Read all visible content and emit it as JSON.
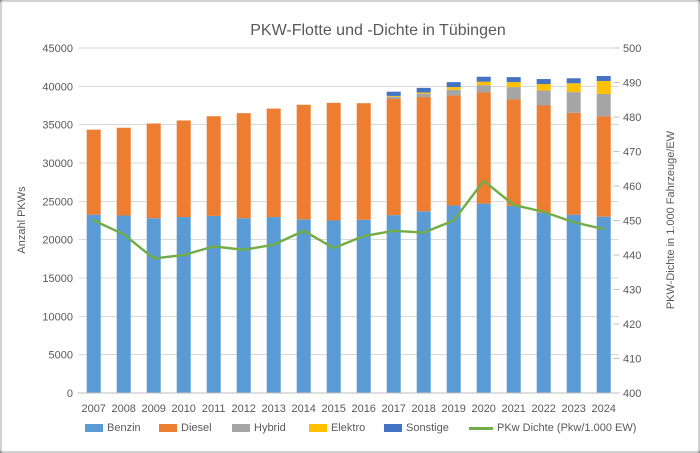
{
  "chart_data": {
    "type": "bar",
    "subtype": "stacked-column-with-line",
    "title": "PKW-Flotte und -Dichte in Tübingen",
    "categories": [
      "2007",
      "2008",
      "2009",
      "2010",
      "2011",
      "2012",
      "2013",
      "2014",
      "2015",
      "2016",
      "2017",
      "2018",
      "2019",
      "2020",
      "2021",
      "2022",
      "2023",
      "2024"
    ],
    "series": [
      {
        "name": "Benzin",
        "color": "#5B9BD5",
        "values": [
          23250,
          23150,
          22800,
          22950,
          23100,
          22800,
          22950,
          22650,
          22500,
          22600,
          23200,
          23700,
          24450,
          24700,
          24400,
          23500,
          23250,
          23000
        ]
      },
      {
        "name": "Diesel",
        "color": "#ED7D31",
        "values": [
          11100,
          11450,
          12350,
          12600,
          13000,
          13700,
          14150,
          14950,
          15350,
          15200,
          15150,
          14900,
          14350,
          14500,
          13900,
          14000,
          13300,
          13100
        ]
      },
      {
        "name": "Hybrid",
        "color": "#A5A5A5",
        "values": [
          0,
          0,
          0,
          0,
          0,
          0,
          0,
          0,
          0,
          0,
          300,
          450,
          750,
          950,
          1600,
          1950,
          2700,
          2900
        ]
      },
      {
        "name": "Elektro",
        "color": "#FFC000",
        "values": [
          0,
          0,
          0,
          0,
          0,
          0,
          0,
          0,
          0,
          0,
          100,
          150,
          350,
          450,
          650,
          850,
          1150,
          1700
        ]
      },
      {
        "name": "Sonstige",
        "color": "#4472C4",
        "values": [
          0,
          0,
          0,
          0,
          0,
          0,
          0,
          0,
          0,
          0,
          550,
          600,
          650,
          650,
          650,
          650,
          650,
          650
        ]
      }
    ],
    "line_series": {
      "name": "PKw Dichte (Pkw/1.000 EW)",
      "color": "#70AD47",
      "axis": "right",
      "values": [
        450,
        446,
        439,
        440,
        442.5,
        441.5,
        443,
        447,
        442,
        445.5,
        447,
        446.5,
        450,
        461.5,
        454.5,
        452.5,
        449.5,
        447.5
      ]
    },
    "left_axis": {
      "label": "Anzahl PKWs",
      "min": 0,
      "max": 45000,
      "step": 5000,
      "ticks": [
        "0",
        "5000",
        "10000",
        "15000",
        "20000",
        "25000",
        "30000",
        "35000",
        "40000",
        "45000"
      ]
    },
    "right_axis": {
      "label": "PKW-Dichte in 1.000 Fahrzeuge/EW",
      "min": 400,
      "max": 500,
      "step": 10,
      "ticks": [
        "400",
        "410",
        "420",
        "430",
        "440",
        "450",
        "460",
        "470",
        "480",
        "490",
        "500"
      ]
    },
    "grid": true,
    "stacked": true,
    "legend_position": "bottom",
    "colors": {
      "gridline": "#d9d9d9",
      "axis_line": "#bfbfbf",
      "text": "#595959"
    }
  }
}
